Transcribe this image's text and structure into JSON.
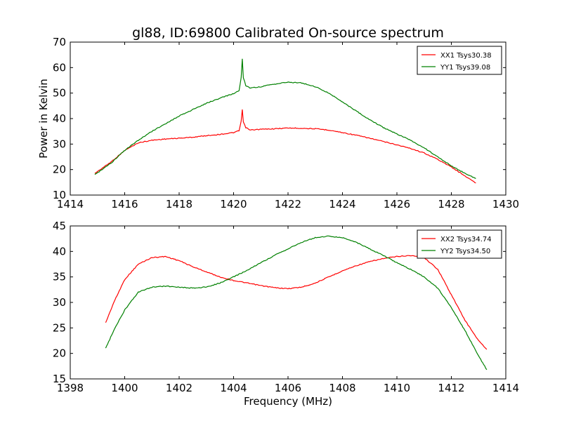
{
  "figure": {
    "title": "gl88, ID:69800 Calibrated On-source spectrum",
    "colors": {
      "red": "#ff0000",
      "green": "#008000"
    }
  },
  "chart_data": [
    {
      "type": "line",
      "title": "gl88, ID:69800 Calibrated On-source spectrum",
      "xlabel": "",
      "ylabel": "Power in Kelvin",
      "xlim": [
        1414,
        1430
      ],
      "ylim": [
        10,
        70
      ],
      "xticks": [
        1414,
        1416,
        1418,
        1420,
        1422,
        1424,
        1426,
        1428,
        1430
      ],
      "yticks": [
        10,
        20,
        30,
        40,
        50,
        60,
        70
      ],
      "grid": false,
      "legend": "top-right",
      "series": [
        {
          "name": "XX1 Tsys30.38",
          "color": "#ff0000",
          "x": [
            1414.9,
            1415.5,
            1416.0,
            1416.5,
            1417.0,
            1417.5,
            1418.0,
            1418.5,
            1419.0,
            1419.5,
            1420.0,
            1420.2,
            1420.28,
            1420.32,
            1420.36,
            1420.45,
            1420.6,
            1421.0,
            1421.5,
            1422.0,
            1422.5,
            1423.0,
            1423.5,
            1424.0,
            1424.5,
            1425.0,
            1425.5,
            1426.0,
            1426.5,
            1427.0,
            1427.5,
            1428.0,
            1428.5,
            1428.9
          ],
          "y": [
            18.5,
            23.0,
            27.5,
            30.5,
            31.5,
            32.0,
            32.3,
            32.7,
            33.3,
            33.8,
            34.5,
            35.2,
            39.0,
            43.5,
            38.5,
            36.5,
            35.5,
            35.8,
            36.0,
            36.3,
            36.2,
            36.0,
            35.5,
            34.5,
            33.5,
            32.3,
            31.0,
            29.7,
            28.3,
            26.5,
            24.0,
            21.0,
            17.5,
            14.7
          ]
        },
        {
          "name": "YY1 Tsys39.08",
          "color": "#008000",
          "x": [
            1414.9,
            1415.5,
            1416.0,
            1416.5,
            1417.0,
            1417.5,
            1418.0,
            1418.5,
            1419.0,
            1419.5,
            1420.0,
            1420.2,
            1420.28,
            1420.32,
            1420.36,
            1420.45,
            1420.6,
            1421.0,
            1421.5,
            1422.0,
            1422.5,
            1423.0,
            1423.5,
            1424.0,
            1424.5,
            1425.0,
            1425.5,
            1426.0,
            1426.5,
            1427.0,
            1427.5,
            1428.0,
            1428.5,
            1428.9
          ],
          "y": [
            18.0,
            22.5,
            27.5,
            31.5,
            35.0,
            38.0,
            41.0,
            43.5,
            46.0,
            48.0,
            49.8,
            51.0,
            56.0,
            63.5,
            56.0,
            53.0,
            52.0,
            52.5,
            53.5,
            54.3,
            54.0,
            52.5,
            50.0,
            46.5,
            43.0,
            39.5,
            36.5,
            34.0,
            31.5,
            28.5,
            25.0,
            21.5,
            18.5,
            16.5
          ]
        }
      ]
    },
    {
      "type": "line",
      "title": "",
      "xlabel": "Frequency (MHz)",
      "ylabel": "",
      "xlim": [
        1398,
        1414
      ],
      "ylim": [
        15,
        45
      ],
      "xticks": [
        1398,
        1400,
        1402,
        1404,
        1406,
        1408,
        1410,
        1412,
        1414
      ],
      "yticks": [
        15,
        20,
        25,
        30,
        35,
        40,
        45
      ],
      "grid": false,
      "legend": "top-right",
      "series": [
        {
          "name": "XX2 Tsys34.74",
          "color": "#ff0000",
          "x": [
            1399.3,
            1399.6,
            1400.0,
            1400.5,
            1401.0,
            1401.5,
            1402.0,
            1402.5,
            1403.0,
            1403.5,
            1404.0,
            1404.5,
            1405.0,
            1405.5,
            1406.0,
            1406.5,
            1407.0,
            1407.5,
            1408.0,
            1408.5,
            1409.0,
            1409.5,
            1410.0,
            1410.5,
            1411.0,
            1411.5,
            1412.0,
            1412.5,
            1413.0,
            1413.3
          ],
          "y": [
            26.0,
            30.0,
            34.5,
            37.5,
            38.8,
            39.0,
            38.2,
            37.0,
            36.0,
            35.0,
            34.3,
            33.8,
            33.3,
            32.9,
            32.7,
            33.0,
            33.8,
            35.0,
            36.2,
            37.2,
            38.0,
            38.6,
            39.0,
            39.2,
            38.8,
            36.5,
            31.5,
            26.5,
            22.5,
            20.8
          ]
        },
        {
          "name": "YY2 Tsys34.50",
          "color": "#008000",
          "x": [
            1399.3,
            1399.6,
            1400.0,
            1400.5,
            1401.0,
            1401.5,
            1402.0,
            1402.5,
            1403.0,
            1403.5,
            1404.0,
            1404.5,
            1405.0,
            1405.5,
            1406.0,
            1406.5,
            1407.0,
            1407.5,
            1408.0,
            1408.5,
            1409.0,
            1409.5,
            1410.0,
            1410.5,
            1411.0,
            1411.5,
            1412.0,
            1412.5,
            1413.0,
            1413.3
          ],
          "y": [
            21.0,
            24.5,
            28.5,
            32.0,
            33.0,
            33.2,
            33.0,
            32.8,
            33.0,
            33.8,
            35.0,
            36.3,
            37.8,
            39.2,
            40.5,
            41.8,
            42.7,
            43.0,
            42.7,
            41.8,
            40.5,
            39.2,
            37.8,
            36.5,
            35.0,
            32.8,
            29.0,
            24.5,
            19.5,
            16.8
          ]
        }
      ]
    }
  ]
}
